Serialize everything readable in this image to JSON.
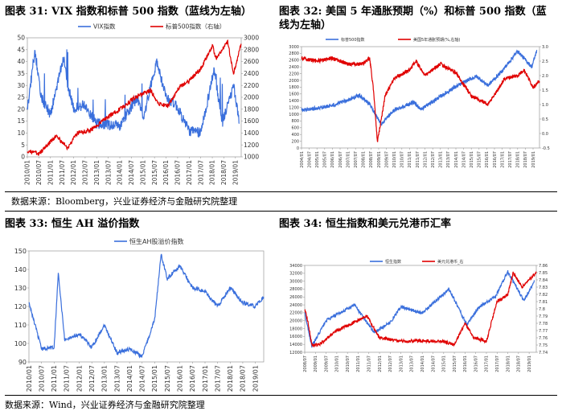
{
  "titles": {
    "c31": "图表 31:  VIX 指数和标普 500 指数（蓝线为左轴）",
    "c32_line1": "图表 32:  美国 5 年通胀预期（%）和标普 500 指数（蓝",
    "c32_line2": "线为左轴）",
    "c33": "图表 33:  恒生 AH 溢价指数",
    "c34": "图表 34:  恒生指数和美元兑港币汇率"
  },
  "sources": {
    "top": "数据来源：Bloomberg，兴业证券经济与金融研究院整理",
    "bottom": "数据来源：Wind，兴业证券经济与金融研究院整理"
  },
  "colors": {
    "blue": "#3a6fdc",
    "red": "#e00000"
  },
  "chart_data": [
    {
      "id": "c31",
      "type": "line",
      "series": [
        {
          "name": "VIX指数",
          "axis": "left",
          "color": "#3a6fdc",
          "x": [
            "2010/01",
            "2010/05",
            "2010/08",
            "2011/01",
            "2011/08",
            "2011/10",
            "2012/01",
            "2012/06",
            "2013/01",
            "2014/01",
            "2014/10",
            "2015/01",
            "2015/08",
            "2016/01",
            "2016/06",
            "2017/01",
            "2017/07",
            "2018/02",
            "2018/06",
            "2018/10",
            "2018/12",
            "2019/03"
          ],
          "values": [
            20,
            45,
            25,
            18,
            42,
            30,
            20,
            22,
            14,
            13,
            25,
            16,
            40,
            25,
            22,
            11,
            10,
            37,
            14,
            24,
            30,
            14
          ]
        },
        {
          "name": "标普500指数（右轴）",
          "axis": "right",
          "color": "#e00000",
          "x": [
            "2010/01",
            "2010/07",
            "2011/04",
            "2011/10",
            "2012/03",
            "2012/10",
            "2013/06",
            "2014/01",
            "2014/09",
            "2015/05",
            "2015/09",
            "2016/02",
            "2016/08",
            "2017/01",
            "2017/07",
            "2018/01",
            "2018/03",
            "2018/09",
            "2018/12",
            "2019/04"
          ],
          "values": [
            1100,
            1050,
            1350,
            1150,
            1400,
            1450,
            1650,
            1800,
            2000,
            2120,
            1900,
            1850,
            2180,
            2280,
            2470,
            2870,
            2650,
            2930,
            2400,
            2900
          ]
        }
      ],
      "x_ticks": [
        "2010/01",
        "2010/07",
        "2011/01",
        "2011/07",
        "2012/01",
        "2012/07",
        "2013/01",
        "2013/07",
        "2014/01",
        "2014/07",
        "2015/01",
        "2015/07",
        "2016/01",
        "2016/07",
        "2017/01",
        "2017/07",
        "2018/01",
        "2018/07",
        "2019/01"
      ],
      "y_left": {
        "ylim": [
          0,
          50
        ],
        "ticks": [
          "0",
          "5",
          "10",
          "15",
          "20",
          "25",
          "30",
          "35",
          "40",
          "45",
          "50"
        ]
      },
      "y_right": {
        "ylim": [
          1000,
          3000
        ],
        "ticks": [
          "1000",
          "1200",
          "1400",
          "1600",
          "1800",
          "2000",
          "2200",
          "2400",
          "2600",
          "2800",
          "3000"
        ]
      },
      "legend": {
        "placement": "top"
      }
    },
    {
      "id": "c32",
      "type": "line",
      "series": [
        {
          "name": "标普500指数",
          "axis": "left",
          "color": "#3a6fdc",
          "x": [
            "2004/01",
            "2005/01",
            "2006/01",
            "2007/01",
            "2007/10",
            "2008/06",
            "2009/03",
            "2010/01",
            "2011/04",
            "2011/10",
            "2012/10",
            "2013/10",
            "2014/10",
            "2015/05",
            "2016/02",
            "2017/01",
            "2018/01",
            "2018/12",
            "2019/04"
          ],
          "values": [
            1120,
            1180,
            1260,
            1420,
            1560,
            1300,
            700,
            1120,
            1350,
            1150,
            1450,
            1750,
            2000,
            2120,
            1850,
            2280,
            2870,
            2400,
            2900
          ]
        },
        {
          "name": "美国5年通胀预期(%,右轴)",
          "axis": "right",
          "color": "#e00000",
          "x": [
            "2004/01",
            "2005/01",
            "2006/01",
            "2007/01",
            "2008/01",
            "2008/06",
            "2008/09",
            "2008/12",
            "2009/06",
            "2010/01",
            "2011/01",
            "2011/06",
            "2012/01",
            "2013/01",
            "2014/01",
            "2015/01",
            "2016/02",
            "2016/08",
            "2017/03",
            "2018/01",
            "2018/06",
            "2019/01",
            "2019/06"
          ],
          "values": [
            2.6,
            2.5,
            2.6,
            2.4,
            2.4,
            2.6,
            1.5,
            -0.3,
            1.3,
            1.9,
            2.2,
            2.5,
            2.0,
            2.4,
            2.1,
            1.3,
            1.0,
            1.4,
            1.9,
            2.0,
            2.2,
            1.6,
            1.8
          ]
        }
      ],
      "x_ticks": [
        "2004/01",
        "2004/07",
        "2005/01",
        "2005/07",
        "2006/01",
        "2006/07",
        "2007/01",
        "2007/07",
        "2008/01",
        "2008/07",
        "2009/01",
        "2009/07",
        "2010/01",
        "2010/07",
        "2011/01",
        "2011/07",
        "2012/01",
        "2012/07",
        "2013/01",
        "2013/07",
        "2014/01",
        "2014/07",
        "2015/01",
        "2015/07",
        "2016/01",
        "2016/07",
        "2017/01",
        "2017/07",
        "2018/01",
        "2018/07",
        "2019/01"
      ],
      "y_left": {
        "ylim": [
          0,
          3000
        ],
        "ticks": [
          "0",
          "200",
          "400",
          "600",
          "800",
          "1000",
          "1200",
          "1400",
          "1600",
          "1800",
          "2000",
          "2200",
          "2400",
          "2600",
          "2800",
          "3000"
        ]
      },
      "y_right": {
        "ylim": [
          -0.5,
          3.0
        ],
        "ticks": [
          "-0.5",
          "0.0",
          "0.5",
          "1.0",
          "1.5",
          "2.0",
          "2.5",
          "3.0"
        ]
      },
      "legend": {
        "placement": "top"
      }
    },
    {
      "id": "c33",
      "type": "line",
      "series": [
        {
          "name": "恒生AH股溢价指数",
          "axis": "left",
          "color": "#3a6fdc",
          "x": [
            "2010/01",
            "2010/07",
            "2011/01",
            "2011/03",
            "2011/06",
            "2012/01",
            "2012/07",
            "2013/01",
            "2013/07",
            "2014/01",
            "2014/07",
            "2015/01",
            "2015/04",
            "2015/07",
            "2016/01",
            "2016/07",
            "2017/01",
            "2017/07",
            "2018/01",
            "2018/07",
            "2019/01",
            "2019/05"
          ],
          "values": [
            122,
            97,
            98,
            138,
            102,
            105,
            98,
            110,
            95,
            97,
            93,
            113,
            148,
            135,
            142,
            130,
            128,
            120,
            130,
            122,
            120,
            125
          ]
        }
      ],
      "x_ticks": [
        "2010/01",
        "2010/07",
        "2011/01",
        "2011/07",
        "2012/01",
        "2012/07",
        "2013/01",
        "2013/07",
        "2014/01",
        "2014/07",
        "2015/01",
        "2015/07",
        "2016/01",
        "2016/07",
        "2017/01",
        "2017/07",
        "2018/01",
        "2018/07",
        "2019/01"
      ],
      "y_left": {
        "ylim": [
          90,
          150
        ],
        "ticks": [
          "90",
          "100",
          "110",
          "120",
          "130",
          "140",
          "150"
        ]
      },
      "legend": {
        "placement": "top"
      }
    },
    {
      "id": "c34",
      "type": "line",
      "series": [
        {
          "name": "恒生指数",
          "axis": "left",
          "color": "#3a6fdc",
          "x": [
            "2008/07",
            "2008/11",
            "2009/07",
            "2010/11",
            "2011/10",
            "2012/07",
            "2013/01",
            "2014/01",
            "2015/04",
            "2016/02",
            "2016/09",
            "2017/06",
            "2018/01",
            "2018/06",
            "2018/10",
            "2019/04"
          ],
          "values": [
            22000,
            13500,
            20000,
            24000,
            17000,
            19500,
            23500,
            22000,
            28000,
            19000,
            23500,
            26000,
            32500,
            28500,
            25000,
            30000
          ]
        },
        {
          "name": "美元兑港币_右",
          "axis": "right",
          "color": "#e00000",
          "x": [
            "2008/07",
            "2008/09",
            "2008/11",
            "2009/03",
            "2010/01",
            "2011/06",
            "2012/01",
            "2013/01",
            "2014/01",
            "2015/01",
            "2015/07",
            "2016/01",
            "2016/06",
            "2017/01",
            "2017/07",
            "2018/01",
            "2018/04",
            "2018/09",
            "2019/01",
            "2019/05"
          ],
          "values": [
            7.8,
            7.78,
            7.75,
            7.75,
            7.77,
            7.79,
            7.76,
            7.755,
            7.756,
            7.755,
            7.75,
            7.78,
            7.76,
            7.755,
            7.81,
            7.82,
            7.85,
            7.83,
            7.84,
            7.85
          ]
        }
      ],
      "x_ticks": [
        "2008/07",
        "2009/01",
        "2009/07",
        "2010/01",
        "2010/07",
        "2011/01",
        "2011/07",
        "2012/01",
        "2012/07",
        "2013/01",
        "2013/07",
        "2014/01",
        "2014/07",
        "2015/01",
        "2015/07",
        "2016/01",
        "2016/07",
        "2017/01",
        "2017/07",
        "2018/01",
        "2018/07",
        "2019/01"
      ],
      "y_left": {
        "ylim": [
          12000,
          34000
        ],
        "ticks": [
          "12000",
          "14000",
          "16000",
          "18000",
          "20000",
          "22000",
          "24000",
          "26000",
          "28000",
          "30000",
          "32000",
          "34000"
        ]
      },
      "y_right": {
        "ylim": [
          7.74,
          7.86
        ],
        "ticks": [
          "7.74",
          "7.75",
          "7.76",
          "7.77",
          "7.78",
          "7.79",
          "7.8",
          "7.81",
          "7.82",
          "7.83",
          "7.84",
          "7.85",
          "7.86"
        ]
      },
      "legend": {
        "placement": "top"
      }
    }
  ]
}
